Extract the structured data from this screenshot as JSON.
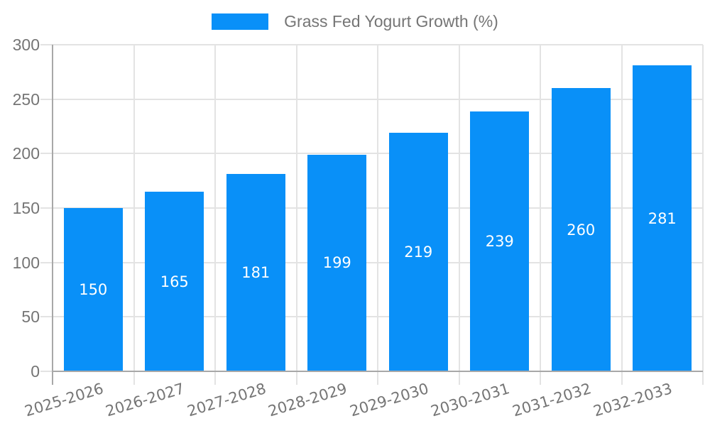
{
  "chart_data": {
    "type": "bar",
    "title": "Grass Fed Yogurt Growth (%)",
    "categories": [
      "2025-2026",
      "2026-2027",
      "2027-2028",
      "2028-2029",
      "2029-2030",
      "2030-2031",
      "2031-2032",
      "2032-2033"
    ],
    "values": [
      150,
      165,
      181,
      199,
      219,
      239,
      260,
      281
    ],
    "xlabel": "",
    "ylabel": "",
    "ylim": [
      0,
      300
    ],
    "yticks": [
      0,
      50,
      100,
      150,
      200,
      250,
      300
    ],
    "grid": true,
    "legend_position": "top-center",
    "value_labels_position": "inside-center",
    "colors": {
      "bar": "#0990f8",
      "grid": "#e3e3e3",
      "axis": "#a8a8a8",
      "tick_label": "#757575",
      "legend_text": "#757575",
      "value_label": "#ffffff",
      "background": "#ffffff"
    }
  }
}
